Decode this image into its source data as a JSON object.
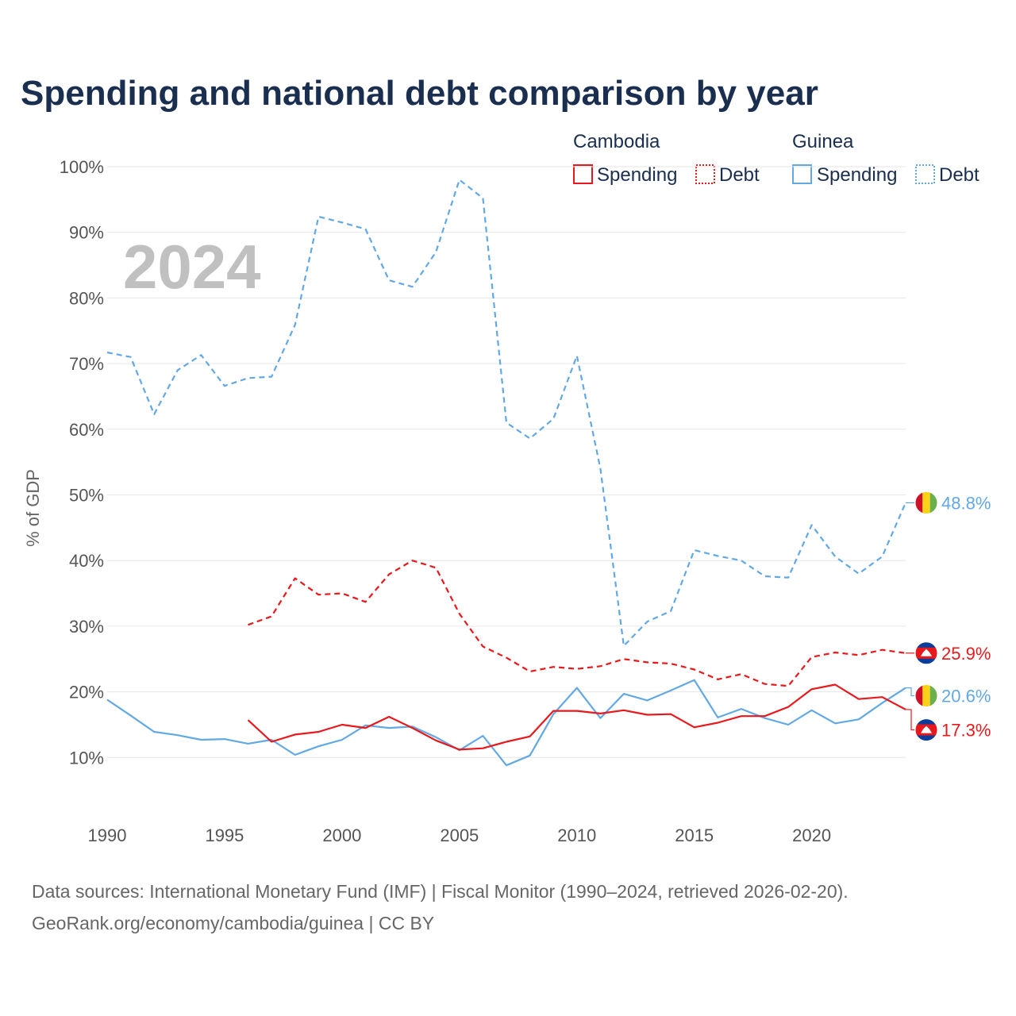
{
  "chart_data": {
    "type": "line",
    "title": "Spending and national debt comparison by year",
    "watermark_year": "2024",
    "ylabel": "% of GDP",
    "xlabel": "",
    "xlim": [
      1990,
      2024
    ],
    "ylim": [
      0,
      100
    ],
    "x_ticks": [
      1990,
      1995,
      2000,
      2005,
      2010,
      2015,
      2020
    ],
    "x_tick_labels": [
      "1990",
      "1995",
      "2000",
      "2005",
      "2010",
      "2015",
      "2020"
    ],
    "y_ticks": [
      10,
      20,
      30,
      40,
      50,
      60,
      70,
      80,
      90,
      100
    ],
    "y_tick_labels": [
      "10%",
      "20%",
      "30%",
      "40%",
      "50%",
      "60%",
      "70%",
      "80%",
      "90%",
      "100%"
    ],
    "legend": {
      "groups": [
        {
          "country": "Cambodia",
          "entries": [
            "Spending",
            "Debt"
          ]
        },
        {
          "country": "Guinea",
          "entries": [
            "Spending",
            "Debt"
          ]
        }
      ]
    },
    "colors": {
      "cambodia": "#e8191c",
      "guinea": "#62a8e5",
      "cambodia_flag_blue": "#0b3e9a",
      "guinea_flag_red": "#ce1126",
      "guinea_flag_yellow": "#fcd116",
      "guinea_flag_green": "#009460"
    },
    "series": [
      {
        "name": "Guinea Debt",
        "country": "Guinea",
        "metric": "Debt",
        "style": "dashed",
        "x": [
          1990,
          1991,
          1992,
          1993,
          1994,
          1995,
          1996,
          1997,
          1998,
          1999,
          2000,
          2001,
          2002,
          2003,
          2004,
          2005,
          2006,
          2007,
          2008,
          2009,
          2010,
          2011,
          2012,
          2013,
          2014,
          2015,
          2016,
          2017,
          2018,
          2019,
          2020,
          2021,
          2022,
          2023,
          2024
        ],
        "values": [
          71.7,
          71.0,
          62.3,
          69.0,
          71.3,
          66.6,
          67.8,
          68.0,
          75.9,
          92.4,
          91.5,
          90.5,
          82.7,
          81.7,
          87.0,
          98.0,
          95.2,
          61.0,
          58.6,
          61.6,
          71.2,
          54.0,
          27.0,
          30.7,
          32.3,
          41.6,
          40.7,
          40.0,
          37.6,
          37.4,
          45.4,
          40.6,
          38.0,
          40.6,
          48.8
        ],
        "end_label": "48.8%"
      },
      {
        "name": "Cambodia Debt",
        "country": "Cambodia",
        "metric": "Debt",
        "style": "dashed",
        "x": [
          1996,
          1997,
          1998,
          1999,
          2000,
          2001,
          2002,
          2003,
          2004,
          2005,
          2006,
          2007,
          2008,
          2009,
          2010,
          2011,
          2012,
          2013,
          2014,
          2015,
          2016,
          2017,
          2018,
          2019,
          2020,
          2021,
          2022,
          2023,
          2024
        ],
        "values": [
          30.2,
          31.5,
          37.3,
          34.8,
          35.0,
          33.7,
          37.9,
          40.0,
          38.9,
          31.9,
          26.9,
          25.2,
          23.1,
          23.8,
          23.5,
          23.9,
          25.0,
          24.5,
          24.3,
          23.4,
          21.9,
          22.7,
          21.2,
          20.9,
          25.3,
          26.0,
          25.6,
          26.4,
          25.9
        ],
        "end_label": "25.9%"
      },
      {
        "name": "Guinea Spending",
        "country": "Guinea",
        "metric": "Spending",
        "style": "solid",
        "x": [
          1990,
          1991,
          1992,
          1993,
          1994,
          1995,
          1996,
          1997,
          1998,
          1999,
          2000,
          2001,
          2002,
          2003,
          2004,
          2005,
          2006,
          2007,
          2008,
          2009,
          2010,
          2011,
          2012,
          2013,
          2014,
          2015,
          2016,
          2017,
          2018,
          2019,
          2020,
          2021,
          2022,
          2023,
          2024
        ],
        "values": [
          18.8,
          16.4,
          13.9,
          13.4,
          12.7,
          12.8,
          12.1,
          12.7,
          10.4,
          11.7,
          12.7,
          14.9,
          14.5,
          14.7,
          13.1,
          11.1,
          13.3,
          8.8,
          10.3,
          16.6,
          20.6,
          16.0,
          19.7,
          18.7,
          20.2,
          21.8,
          16.1,
          17.4,
          16.0,
          15.0,
          17.2,
          15.2,
          15.8,
          18.3,
          20.6
        ],
        "end_label": "20.6%"
      },
      {
        "name": "Cambodia Spending",
        "country": "Cambodia",
        "metric": "Spending",
        "style": "solid",
        "x": [
          1996,
          1997,
          1998,
          1999,
          2000,
          2001,
          2002,
          2003,
          2004,
          2005,
          2006,
          2007,
          2008,
          2009,
          2010,
          2011,
          2012,
          2013,
          2014,
          2015,
          2016,
          2017,
          2018,
          2019,
          2020,
          2021,
          2022,
          2023,
          2024
        ],
        "values": [
          15.7,
          12.4,
          13.5,
          13.9,
          15.0,
          14.5,
          16.2,
          14.5,
          12.6,
          11.2,
          11.4,
          12.4,
          13.2,
          17.1,
          17.1,
          16.7,
          17.2,
          16.5,
          16.6,
          14.6,
          15.3,
          16.3,
          16.3,
          17.7,
          20.4,
          21.1,
          18.9,
          19.2,
          17.3
        ],
        "end_label": "17.3%"
      }
    ],
    "source": "Data sources: International Monetary Fund (IMF) | Fiscal Monitor (1990–2024, retrieved 2026-02-20).",
    "credit": "GeoRank.org/economy/cambodia/guinea | CC BY"
  }
}
